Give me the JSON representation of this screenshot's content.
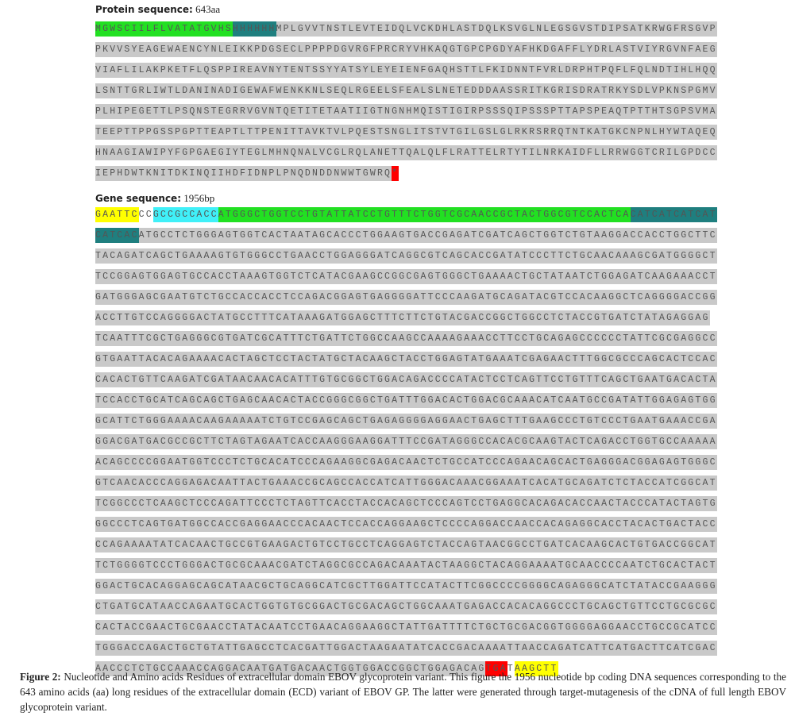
{
  "protein": {
    "label": "Protein sequence:",
    "length": "643aa",
    "lines": [
      [
        {
          "text": "MGWSCIILFLVATATGVHS",
          "highlight": "#22e022"
        },
        {
          "text": "HHHHHH",
          "highlight": "#1f7f7f"
        },
        {
          "text": "MPLGVVTNSTLEVTEIDQLVCKDHLASTDQLKSVGLNLEGSGVSTDIPSATKRWGFRSGVP"
        }
      ],
      [
        {
          "text": "PKVVSYEAGEWAENCYNLEIKKPDGSECLPPPPDGVRGFPRCRYVHKAQGTGPCPGDYAFHKDGAFFLYDRLASTVIYRGVNFAEG"
        }
      ],
      [
        {
          "text": "VIAFLILAKPKETFLQSPPIREAVNYTENTSSYYATSYLEYEIENFGAQHSTTLFKIDNNTFVRLDRPHTPQFLFQLNDTIHLHQQ"
        }
      ],
      [
        {
          "text": "LSNTTGRLIWTLDANINADIGEWAFWENKKNLSEQLRGEELSFEALSLNETEDDDAASSRITKGRISDRATRKYSDLVPKNSPGMV"
        }
      ],
      [
        {
          "text": "PLHIPEGETTLPSQNSTEGRRVGVNTQETITETAATIIGTNGNHMQISTIGIRPSSSQIPSSSPTTAPSPEAQTPTTHTSGPSVMA"
        }
      ],
      [
        {
          "text": "TEEPTTPPGSSPGPTTEAPTLTTPENITTAVKTVLPQESTSNGLITSTVTGILGSLGLRKRSRRQTNTKATGKCNPNLHYWTAQEQ"
        }
      ],
      [
        {
          "text": "HNAAGIAWIPYFGPGAEGIYTEGLMHNQNALVCGLRQLANETTQALQLFLRATTELRTYTILNRKAIDFLLRRWGGTCRILGPDCC"
        }
      ],
      [
        {
          "text": "IEPHDWTKNITDKINQIIHDFIDNPLPNQDNDDNWWTGWRQ"
        },
        {
          "text": "*",
          "highlight": "#ff0000"
        }
      ]
    ]
  },
  "gene": {
    "label": "Gene sequence:",
    "length": "1956bp",
    "lines": [
      [
        {
          "text": "GAATTC",
          "highlight": "#ffff00"
        },
        {
          "text": "CC",
          "highlight": "#ffffff"
        },
        {
          "text": "GCCGCCACC",
          "highlight": "#40f0f8"
        },
        {
          "text": "ATGGGCTGGTCCTGTATTATCCTGTTTCTGGTCGCAACCGCTACTGGCGTCCACTCA",
          "highlight": "#22e022"
        },
        {
          "text": "CATCATCATCAT",
          "highlight": "#1f7f7f"
        }
      ],
      [
        {
          "text": "CATCAC",
          "highlight": "#1f7f7f"
        },
        {
          "text": "ATGCCTCTGGGAGTGGTCACTAATAGCACCCTGGAAGTGACCGAGATCGATCAGCTGGTCTGTAAGGACCACCTGGCTTC"
        }
      ],
      [
        {
          "text": "TACAGATCAGCTGAAAAGTGTGGGCCTGAACCTGGAGGGATCAGGCGTCAGCACCGATATCCCTTCTGCAACAAAGCGATGGGGCT"
        }
      ],
      [
        {
          "text": "TCCGGAGTGGAGTGCCACCTAAAGTGGTCTCATACGAAGCCGGCGAGTGGGCTGAAAACTGCTATAATCTGGAGATCAAGAAACCT"
        }
      ],
      [
        {
          "text": "GATGGGAGCGAATGTCTGCCACCACCTCCAGACGGAGTGAGGGGATTCCCAAGATGCAGATACGTCCACAAGGCTCAGGGGACCGG"
        }
      ],
      [
        {
          "text": "ACCTTGTCCAGGGGACTATGCCTTTCATAAAGATGGAGCTTTCTTCTGTACGACCGGCTGGCCTCTACCGTGATCTATAGAGGAG"
        }
      ],
      [
        {
          "text": "TCAATTTCGCTGAGGGCGTGATCGCATTTCTGATTCTGGCCAAGCCAAAAGAAACCTTCCTGCAGAGCCCCCCTATTCGCGAGGCC"
        }
      ],
      [
        {
          "text": "GTGAATTACACAGAAAACACTAGCTCCTACTATGCTACAAGCTACCTGGAGTATGAAATCGAGAACTTTGGCGCCCAGCACTCCAC"
        }
      ],
      [
        {
          "text": "CACACTGTTCAAGATCGATAACAACACATTTGTGCGGCTGGACAGACCCCATACTCCTCAGTTCCTGTTTCAGCTGAATGACACTA"
        }
      ],
      [
        {
          "text": "TCCACCTGCATCAGCAGCTGAGCAACACTACCGGGCGGCTGATTTGGACACTGGACGCAAACATCAATGCCGATATTGGAGAGTGG"
        }
      ],
      [
        {
          "text": "GCATTCTGGGAAAACAAGAAAAATCTGTCCGAGCAGCTGAGAGGGGAGGAACTGAGCTTTGAAGCCCTGTCCCTGAATGAAACCGA"
        }
      ],
      [
        {
          "text": "GGACGATGACGCCGCTTCTAGTAGAATCACCAAGGGAAGGATTTCCGATAGGGCCACACGCAAGTACTCAGACCTGGTGCCAAAAA"
        }
      ],
      [
        {
          "text": "ACAGCCCCGGAATGGTCCCTCTGCACATCCCAGAAGGCGAGACAACTCTGCCATCCCAGAACAGCACTGAGGGACGGAGAGTGGGC"
        }
      ],
      [
        {
          "text": "GTCAACACCCAGGAGACAATTACTGAAACCGCAGCCACCATCATTGGGACAAACGGAAATCACATGCAGATCTCTACCATCGGCAT"
        }
      ],
      [
        {
          "text": "TCGGCCCTCAAGCTCCCAGATTCCCTCTAGTTCACCTACCACAGCTCCCAGTCCTGAGGCACAGACACCAACTACCCATACTAGTG"
        }
      ],
      [
        {
          "text": "GGCCCTCAGTGATGGCCACCGAGGAACCCACAACTCCACCAGGAAGCTCCCCAGGACCAACCACAGAGGCACCTACACTGACTACC"
        }
      ],
      [
        {
          "text": "CCAGAAAATATCACAACTGCCGTGAAGACTGTCCTGCCTCAGGAGTCTACCAGTAACGGCCTGATCACAAGCACTGTGACCGGCAT"
        }
      ],
      [
        {
          "text": "TCTGGGGTCCCTGGGACTGCGCAAACGATCTAGGCGCCAGACAAATACTAAGGCTACAGGAAAATGCAACCCCAATCTGCACTACT"
        }
      ],
      [
        {
          "text": "GGACTGCACAGGAGCAGCATAACGCTGCAGGCATCGCTTGGATTCCATACTTCGGCCCCGGGGCAGAGGGCATCTATACCGAAGGG"
        }
      ],
      [
        {
          "text": "CTGATGCATAACCAGAATGCACTGGTGTGCGGACTGCGACAGCTGGCAAATGAGACCACACAGGCCCTGCAGCTGTTCCTGCGCGC"
        }
      ],
      [
        {
          "text": "CACTACCGAACTGCGAACCTATACAATCCTGAACAGGAAGGCTATTGATTTTCTGCTGCGACGGTGGGGAGGAACCTGCCGCATCC"
        }
      ],
      [
        {
          "text": "TGGGACCAGACTGCTGTATTGAGCCTCACGATTGGACTAAGAATATCACCGACAAAATTAACCAGATCATTCATGACTTCATCGAC"
        }
      ],
      [
        {
          "text": "AACCCTCTGCCAAACCAGGACAATGATGACAACTGGTGGACCGGCTGGAGACAG"
        },
        {
          "text": "TGA",
          "highlight": "#ff0000"
        },
        {
          "text": "T",
          "highlight": "#ffffff"
        },
        {
          "text": "AAGCTT",
          "highlight": "#ffff00"
        }
      ]
    ]
  },
  "caption": {
    "label": "Figure 2:",
    "text": "Nucleotide and Amino acids Residues of extracellular domain EBOV glycoprotein variant. This figure the 1956 nucleotide bp coding DNA sequences corresponding to the 643 amino acids (aa) long residues of the extracellular domain (ECD) variant of EBOV GP. The latter were generated through target-mutagenesis of the cDNA of full length EBOV glycoprotein variant."
  }
}
